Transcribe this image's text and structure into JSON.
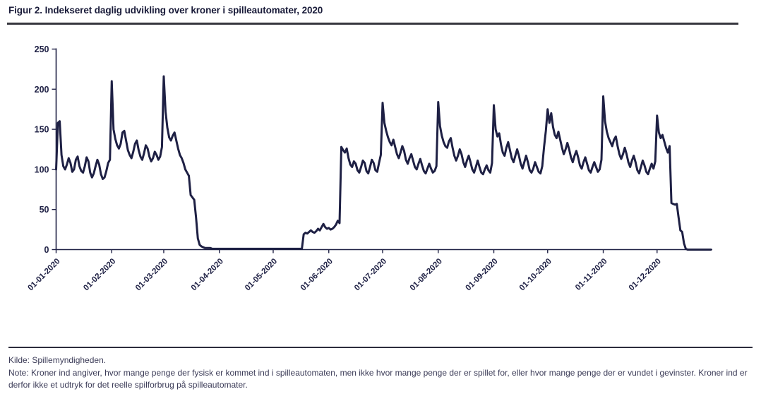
{
  "page": {
    "title": "Figur 2. Indekseret daglig udvikling over kroner i spilleautomater, 2020"
  },
  "footer": {
    "source": "Kilde: Spillemyndigheden.",
    "note": "Note: Kroner ind angiver, hvor mange penge der fysisk er kommet ind i spilleautomaten, men ikke hvor mange penge der er spillet for, eller hvor mange penge der er vundet i gevinster. Kroner ind er derfor ikke et udtryk for det reelle spilforbrug på spilleautomater."
  },
  "chart_data": {
    "type": "line",
    "title": "Figur 2. Indekseret daglig udvikling over kroner i spilleautomater, 2020",
    "xlabel": "",
    "ylabel": "",
    "ylim": [
      0,
      250
    ],
    "yticks": [
      0,
      50,
      100,
      150,
      200,
      250
    ],
    "grid": false,
    "legend": "none",
    "line_color": "#1e2044",
    "axis_color": "#1e2044",
    "xtick_labels": [
      "01-01-2020",
      "01-02-2020",
      "01-03-2020",
      "01-04-2020",
      "01-05-2020",
      "01-06-2020",
      "01-07-2020",
      "01-08-2020",
      "01-09-2020",
      "01-10-2020",
      "01-11-2020",
      "01-12-2020"
    ],
    "xtick_day_offsets": [
      0,
      31,
      60,
      91,
      121,
      152,
      182,
      213,
      244,
      274,
      305,
      335
    ],
    "x_unit": "day of 2020 (366 daily values, indexed level of kroner inserted in slot machines)",
    "values": [
      100,
      158,
      160,
      118,
      104,
      100,
      106,
      114,
      108,
      97,
      100,
      112,
      116,
      104,
      98,
      96,
      104,
      115,
      110,
      96,
      90,
      95,
      104,
      112,
      106,
      94,
      88,
      90,
      98,
      108,
      112,
      210,
      150,
      138,
      130,
      126,
      132,
      146,
      148,
      136,
      124,
      118,
      114,
      122,
      132,
      136,
      124,
      116,
      112,
      120,
      130,
      126,
      116,
      110,
      114,
      122,
      118,
      112,
      116,
      128,
      216,
      172,
      152,
      140,
      136,
      142,
      146,
      136,
      126,
      118,
      114,
      108,
      100,
      96,
      92,
      68,
      65,
      62,
      40,
      14,
      6,
      4,
      3,
      2,
      2,
      2,
      2,
      1,
      1,
      1,
      1,
      1,
      1,
      1,
      1,
      1,
      1,
      1,
      1,
      1,
      1,
      1,
      1,
      1,
      1,
      1,
      1,
      1,
      1,
      1,
      1,
      1,
      1,
      1,
      1,
      1,
      1,
      1,
      1,
      1,
      1,
      1,
      1,
      1,
      1,
      1,
      1,
      1,
      1,
      1,
      1,
      1,
      1,
      1,
      1,
      1,
      1,
      1,
      19,
      21,
      20,
      22,
      24,
      22,
      21,
      23,
      26,
      24,
      28,
      32,
      28,
      26,
      27,
      25,
      26,
      28,
      31,
      36,
      33,
      128,
      124,
      121,
      126,
      114,
      106,
      103,
      110,
      107,
      99,
      96,
      103,
      111,
      108,
      98,
      95,
      103,
      112,
      108,
      99,
      97,
      108,
      118,
      183,
      158,
      148,
      140,
      134,
      130,
      137,
      128,
      119,
      114,
      121,
      129,
      123,
      112,
      107,
      114,
      119,
      111,
      103,
      100,
      107,
      113,
      105,
      98,
      95,
      101,
      107,
      101,
      96,
      98,
      104,
      184,
      154,
      142,
      134,
      129,
      127,
      135,
      139,
      127,
      117,
      111,
      117,
      125,
      119,
      109,
      103,
      111,
      117,
      109,
      100,
      96,
      103,
      111,
      103,
      96,
      94,
      100,
      105,
      99,
      96,
      108,
      180,
      150,
      141,
      145,
      131,
      121,
      117,
      127,
      134,
      124,
      114,
      109,
      117,
      125,
      117,
      107,
      101,
      109,
      117,
      109,
      99,
      96,
      101,
      109,
      103,
      97,
      95,
      104,
      128,
      148,
      175,
      158,
      170,
      153,
      143,
      139,
      147,
      137,
      127,
      119,
      125,
      133,
      125,
      115,
      109,
      117,
      123,
      115,
      105,
      101,
      109,
      115,
      107,
      99,
      96,
      103,
      109,
      103,
      97,
      100,
      112,
      191,
      160,
      147,
      139,
      134,
      129,
      137,
      141,
      129,
      119,
      113,
      119,
      127,
      119,
      109,
      103,
      111,
      117,
      109,
      99,
      95,
      103,
      111,
      105,
      97,
      94,
      101,
      107,
      101,
      110,
      167,
      146,
      139,
      143,
      135,
      127,
      121,
      129,
      58,
      57,
      56,
      57,
      40,
      24,
      22,
      8,
      1,
      0,
      0,
      0,
      0,
      0,
      0,
      0,
      0,
      0,
      0,
      0,
      0,
      0,
      0
    ]
  }
}
